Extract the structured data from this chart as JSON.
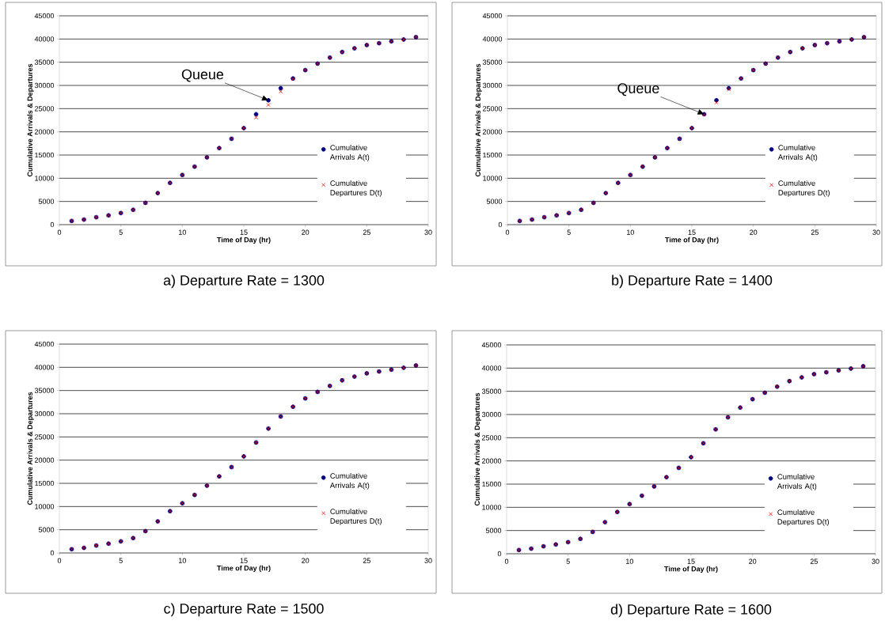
{
  "chart_data": [
    {
      "type": "scatter",
      "title": "a) Departure Rate  = 1300",
      "xlabel": "Time of Day (hr)",
      "ylabel": "Cumulative Arrivals & Departures",
      "x": [
        1,
        2,
        3,
        4,
        5,
        6,
        7,
        8,
        9,
        10,
        11,
        12,
        13,
        14,
        15,
        16,
        17,
        18,
        19,
        20,
        21,
        22,
        23,
        24,
        25,
        26,
        27,
        28,
        29
      ],
      "series": [
        {
          "name": "Cumulative Arrivals A(t)",
          "color": "#000080",
          "marker": "circle",
          "values": [
            800,
            1100,
            1600,
            2000,
            2500,
            3200,
            4700,
            6800,
            9000,
            10700,
            12500,
            14500,
            16500,
            18500,
            20800,
            23800,
            26800,
            29400,
            31500,
            33300,
            34700,
            36000,
            37200,
            38000,
            38700,
            39100,
            39500,
            39900,
            40400
          ]
        },
        {
          "name": "Cumulative Departures D(t)",
          "color": "#ff0000",
          "marker": "cross",
          "values": [
            800,
            1100,
            1600,
            2000,
            2500,
            3200,
            4700,
            6800,
            9000,
            10700,
            12500,
            14500,
            16500,
            18500,
            20800,
            23100,
            25800,
            28700,
            31400,
            33300,
            34700,
            36000,
            37200,
            38000,
            38700,
            39100,
            39500,
            39900,
            40400
          ]
        }
      ],
      "xlim": [
        0,
        30
      ],
      "xticks": [
        0,
        5,
        10,
        15,
        20,
        25,
        30
      ],
      "ylim": [
        0,
        45000
      ],
      "yticks": [
        0,
        5000,
        10000,
        15000,
        20000,
        25000,
        30000,
        35000,
        40000,
        45000
      ],
      "grid": "y",
      "legend": "right",
      "annotations": [
        {
          "text": "Queue",
          "x": 17,
          "y": 26800
        }
      ]
    },
    {
      "type": "scatter",
      "title": "b) Departure Rate  = 1400",
      "xlabel": "Time of Day (hr)",
      "ylabel": "Cumulative Arrivals & Departures",
      "x": [
        1,
        2,
        3,
        4,
        5,
        6,
        7,
        8,
        9,
        10,
        11,
        12,
        13,
        14,
        15,
        16,
        17,
        18,
        19,
        20,
        21,
        22,
        23,
        24,
        25,
        26,
        27,
        28,
        29
      ],
      "series": [
        {
          "name": "Cumulative Arrivals A(t)",
          "color": "#000080",
          "marker": "circle",
          "values": [
            800,
            1100,
            1600,
            2000,
            2500,
            3200,
            4700,
            6800,
            9000,
            10700,
            12500,
            14500,
            16500,
            18500,
            20800,
            23800,
            26800,
            29400,
            31500,
            33300,
            34700,
            36000,
            37200,
            38000,
            38700,
            39100,
            39500,
            39900,
            40400
          ]
        },
        {
          "name": "Cumulative Departures D(t)",
          "color": "#ff0000",
          "marker": "cross",
          "values": [
            800,
            1100,
            1600,
            2000,
            2500,
            3200,
            4700,
            6800,
            9000,
            10700,
            12500,
            14500,
            16500,
            18500,
            20800,
            23700,
            26300,
            29200,
            31500,
            33300,
            34700,
            36000,
            37200,
            38000,
            38700,
            39100,
            39500,
            39900,
            40400
          ]
        }
      ],
      "xlim": [
        0,
        30
      ],
      "xticks": [
        0,
        5,
        10,
        15,
        20,
        25,
        30
      ],
      "ylim": [
        0,
        45000
      ],
      "yticks": [
        0,
        5000,
        10000,
        15000,
        20000,
        25000,
        30000,
        35000,
        40000,
        45000
      ],
      "grid": "y",
      "legend": "right",
      "annotations": [
        {
          "text": "Queue",
          "x": 16,
          "y": 23800
        }
      ]
    },
    {
      "type": "scatter",
      "title": "c) Departure Rate  = 1500",
      "xlabel": "Time of Day (hr)",
      "ylabel": "Cumulative Arrivals & Departures",
      "x": [
        1,
        2,
        3,
        4,
        5,
        6,
        7,
        8,
        9,
        10,
        11,
        12,
        13,
        14,
        15,
        16,
        17,
        18,
        19,
        20,
        21,
        22,
        23,
        24,
        25,
        26,
        27,
        28,
        29
      ],
      "series": [
        {
          "name": "Cumulative Arrivals A(t)",
          "color": "#000080",
          "marker": "circle",
          "values": [
            800,
            1100,
            1600,
            2000,
            2500,
            3200,
            4700,
            6800,
            9000,
            10700,
            12500,
            14500,
            16500,
            18500,
            20800,
            23800,
            26800,
            29400,
            31500,
            33300,
            34700,
            36000,
            37200,
            38000,
            38700,
            39100,
            39500,
            39900,
            40400
          ]
        },
        {
          "name": "Cumulative Departures D(t)",
          "color": "#ff0000",
          "marker": "cross",
          "values": [
            800,
            1100,
            1600,
            2000,
            2500,
            3200,
            4700,
            6800,
            9000,
            10700,
            12500,
            14500,
            16500,
            18500,
            20800,
            23800,
            26800,
            29400,
            31500,
            33300,
            34700,
            36000,
            37200,
            38000,
            38700,
            39100,
            39500,
            39900,
            40400
          ]
        }
      ],
      "xlim": [
        0,
        30
      ],
      "xticks": [
        0,
        5,
        10,
        15,
        20,
        25,
        30
      ],
      "ylim": [
        0,
        45000
      ],
      "yticks": [
        0,
        5000,
        10000,
        15000,
        20000,
        25000,
        30000,
        35000,
        40000,
        45000
      ],
      "grid": "y",
      "legend": "right"
    },
    {
      "type": "scatter",
      "title": "d) Departure Rate  = 1600",
      "xlabel": "Time of Day (hr)",
      "ylabel": "Cumulative Arrivals & Departures",
      "x": [
        1,
        2,
        3,
        4,
        5,
        6,
        7,
        8,
        9,
        10,
        11,
        12,
        13,
        14,
        15,
        16,
        17,
        18,
        19,
        20,
        21,
        22,
        23,
        24,
        25,
        26,
        27,
        28,
        29
      ],
      "series": [
        {
          "name": "Cumulative Arrivals A(t)",
          "color": "#000080",
          "marker": "circle",
          "values": [
            800,
            1100,
            1600,
            2000,
            2500,
            3200,
            4700,
            6800,
            9000,
            10700,
            12500,
            14500,
            16500,
            18500,
            20800,
            23800,
            26800,
            29400,
            31500,
            33300,
            34700,
            36000,
            37200,
            38000,
            38700,
            39100,
            39500,
            39900,
            40400
          ]
        },
        {
          "name": "Cumulative Departures D(t)",
          "color": "#ff0000",
          "marker": "cross",
          "values": [
            800,
            1100,
            1600,
            2000,
            2500,
            3200,
            4700,
            6800,
            9000,
            10700,
            12500,
            14500,
            16500,
            18500,
            20800,
            23800,
            26800,
            29400,
            31500,
            33300,
            34700,
            36000,
            37200,
            38000,
            38700,
            39100,
            39500,
            39900,
            40400
          ]
        }
      ],
      "xlim": [
        0,
        30
      ],
      "xticks": [
        0,
        5,
        10,
        15,
        20,
        25,
        30
      ],
      "ylim": [
        0,
        45000
      ],
      "yticks": [
        0,
        5000,
        10000,
        15000,
        20000,
        25000,
        30000,
        35000,
        40000,
        45000
      ],
      "grid": "y",
      "legend": "right"
    }
  ]
}
